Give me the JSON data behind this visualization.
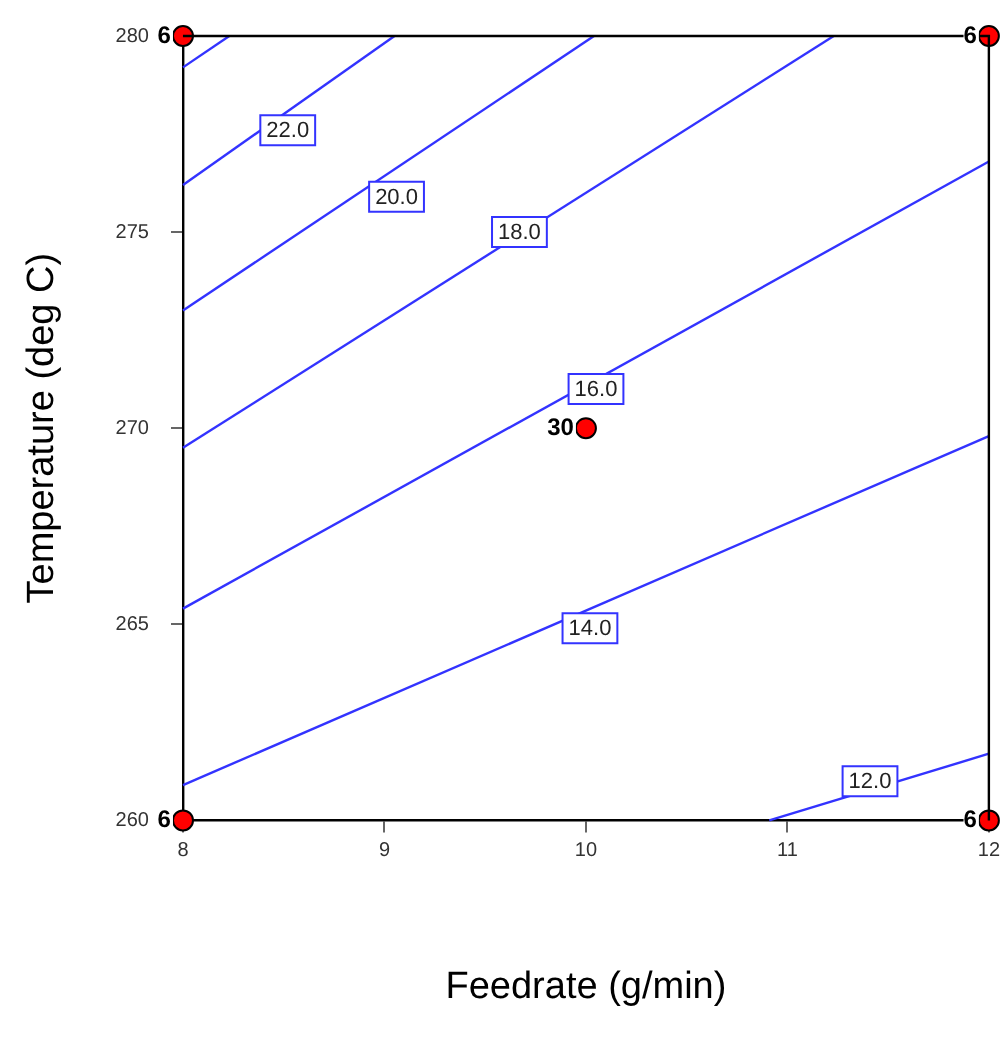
{
  "chart_data": {
    "type": "line",
    "xlabel": "Feedrate (g/min)",
    "ylabel": "Temperature (deg C)",
    "xlim": [
      8,
      12
    ],
    "xticks": [
      8,
      9,
      10,
      11,
      12
    ],
    "ylim": [
      260,
      280
    ],
    "yticks": [
      260,
      265,
      270,
      275,
      280
    ],
    "legend": false,
    "marker": "none",
    "line_style": "solid",
    "series": [
      {
        "color": "#3333ff",
        "x": [
          8,
          8.23
        ],
        "values": [
          279.2,
          280
        ]
      },
      {
        "color": "#3333ff",
        "x": [
          8,
          9.05
        ],
        "values": [
          276.2,
          280
        ]
      },
      {
        "color": "#3333ff",
        "x": [
          8,
          10.04
        ],
        "values": [
          273.0,
          280
        ]
      },
      {
        "color": "#3333ff",
        "x": [
          8,
          11.23
        ],
        "values": [
          269.5,
          280
        ]
      },
      {
        "color": "#3333ff",
        "x": [
          8,
          12
        ],
        "values": [
          265.4,
          276.8
        ]
      },
      {
        "color": "#3333ff",
        "x": [
          8,
          12
        ],
        "values": [
          260.9,
          269.8
        ]
      },
      {
        "color": "#3333ff",
        "x": [
          10.91,
          12
        ],
        "values": [
          260,
          261.7
        ]
      },
      {
        "type": "scatter",
        "color": "#ff0000",
        "marker": "circle",
        "x": [
          8,
          12,
          10,
          8,
          12
        ],
        "values": [
          280,
          280,
          270,
          260,
          260
        ]
      }
    ],
    "annotations": [
      {
        "text": "22.0",
        "x": 8.52,
        "y": 277.6
      },
      {
        "text": "20.0",
        "x": 9.06,
        "y": 275.9
      },
      {
        "text": "18.0",
        "x": 9.67,
        "y": 275.0
      },
      {
        "text": "16.0",
        "x": 10.05,
        "y": 271.0
      },
      {
        "text": "14.0",
        "x": 10.02,
        "y": 264.9
      },
      {
        "text": "12.0",
        "x": 11.41,
        "y": 261.0
      },
      {
        "text": "6",
        "x": 8,
        "y": 280
      },
      {
        "text": "6",
        "x": 12,
        "y": 280
      },
      {
        "text": "30",
        "x": 10,
        "y": 270
      },
      {
        "text": "6",
        "x": 8,
        "y": 260
      },
      {
        "text": "6",
        "x": 12,
        "y": 260
      }
    ]
  }
}
